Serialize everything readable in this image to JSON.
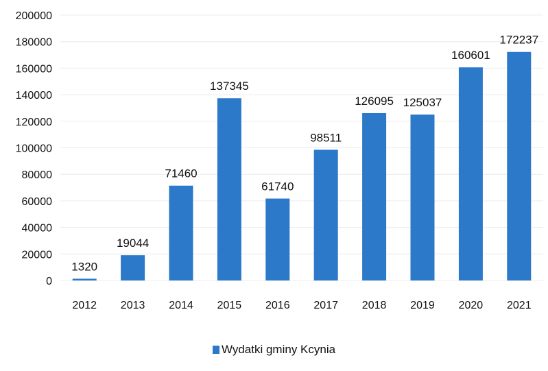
{
  "chart_data": {
    "type": "bar",
    "categories": [
      "2012",
      "2013",
      "2014",
      "2015",
      "2016",
      "2017",
      "2018",
      "2019",
      "2020",
      "2021"
    ],
    "series": [
      {
        "name": "Wydatki gminy Kcynia",
        "values": [
          1320,
          19044,
          71460,
          137345,
          61740,
          98511,
          126095,
          125037,
          160601,
          172237
        ],
        "color": "#2b79c8"
      }
    ],
    "y_ticks": [
      "0",
      "20000",
      "40000",
      "60000",
      "80000",
      "100000",
      "120000",
      "140000",
      "160000",
      "180000",
      "200000"
    ],
    "ylim": [
      0,
      200000
    ],
    "grid": true,
    "legend_position": "bottom"
  }
}
